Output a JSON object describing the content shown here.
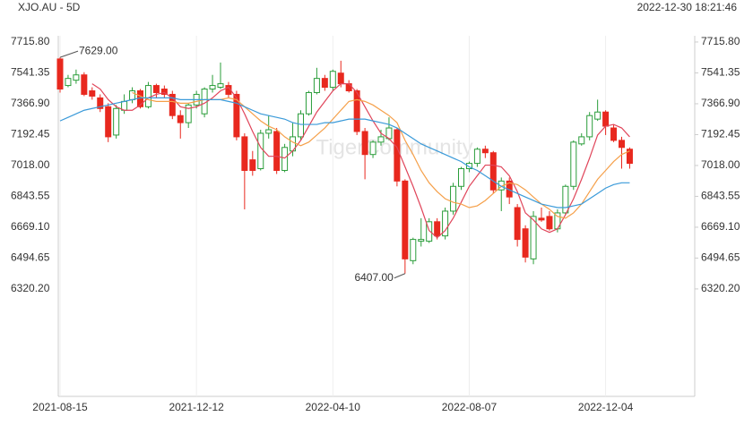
{
  "chart_data": {
    "type": "candlestick",
    "title": "XJO.AU - 5D",
    "timestamp": "2022-12-30 18:21:46",
    "watermark": "TigerCommunity",
    "categories": [
      "2021-08-15",
      null,
      null,
      null,
      null,
      null,
      null,
      null,
      null,
      null,
      null,
      null,
      null,
      null,
      null,
      null,
      null,
      "2021-12-12",
      null,
      null,
      null,
      null,
      null,
      null,
      null,
      null,
      null,
      null,
      null,
      null,
      null,
      null,
      null,
      null,
      "2022-04-10",
      null,
      null,
      null,
      null,
      null,
      null,
      null,
      null,
      null,
      null,
      null,
      null,
      null,
      null,
      null,
      null,
      "2022-08-07",
      null,
      null,
      null,
      null,
      null,
      null,
      null,
      null,
      null,
      null,
      null,
      null,
      null,
      null,
      null,
      null,
      "2022-12-04",
      null,
      null,
      null
    ],
    "open": [
      7620,
      7470,
      7500,
      7530,
      7440,
      7400,
      7350,
      7190,
      7330,
      7390,
      7440,
      7350,
      7470,
      7450,
      7420,
      7300,
      7260,
      7360,
      7310,
      7450,
      7460,
      7470,
      7420,
      7180,
      7050,
      7000,
      7200,
      7210,
      6990,
      7100,
      7180,
      7310,
      7430,
      7510,
      7460,
      7540,
      7480,
      7440,
      7210,
      7080,
      7150,
      7170,
      7220,
      6930,
      6480,
      6590,
      6590,
      6700,
      6620,
      6760,
      6900,
      7000,
      7030,
      7110,
      7090,
      6880,
      6930,
      6780,
      6660,
      6490,
      6720,
      6730,
      6660,
      6750,
      6900,
      7140,
      7180,
      7280,
      7320,
      7230,
      7160,
      7110
    ],
    "high": [
      7629,
      7530,
      7560,
      7545,
      7460,
      7420,
      7370,
      7360,
      7420,
      7460,
      7450,
      7490,
      7480,
      7470,
      7440,
      7330,
      7370,
      7440,
      7460,
      7530,
      7600,
      7490,
      7440,
      7200,
      7100,
      7220,
      7300,
      7230,
      7140,
      7260,
      7330,
      7440,
      7570,
      7530,
      7560,
      7610,
      7500,
      7450,
      7230,
      7160,
      7220,
      7290,
      7230,
      6940,
      6610,
      6720,
      6720,
      6720,
      6780,
      6920,
      7010,
      7040,
      7120,
      7130,
      7100,
      6950,
      6950,
      6800,
      6680,
      6760,
      6780,
      6760,
      6770,
      6910,
      7160,
      7200,
      7320,
      7390,
      7330,
      7250,
      7180,
      7120
    ],
    "low": [
      7430,
      7460,
      7480,
      7410,
      7390,
      7320,
      7150,
      7170,
      7310,
      7370,
      7340,
      7340,
      7400,
      7400,
      7280,
      7170,
      7230,
      7340,
      7290,
      7430,
      7450,
      7400,
      7160,
      6770,
      6960,
      6990,
      7170,
      6970,
      6980,
      7070,
      7160,
      7300,
      7420,
      7440,
      7440,
      7460,
      7430,
      7190,
      6940,
      7060,
      7130,
      7160,
      6900,
      6407,
      6460,
      6560,
      6580,
      6600,
      6600,
      6740,
      6880,
      6980,
      7010,
      7060,
      6860,
      6760,
      6800,
      6560,
      6470,
      6460,
      6700,
      6650,
      6640,
      6740,
      6880,
      7130,
      7160,
      7270,
      7190,
      7150,
      7000,
      7000
    ],
    "close": [
      7450,
      7510,
      7530,
      7420,
      7410,
      7340,
      7180,
      7340,
      7380,
      7440,
      7350,
      7470,
      7430,
      7420,
      7300,
      7260,
      7360,
      7420,
      7450,
      7470,
      7480,
      7420,
      7180,
      6990,
      6990,
      7200,
      7220,
      6990,
      7120,
      7180,
      7310,
      7430,
      7510,
      7460,
      7550,
      7480,
      7440,
      7210,
      7080,
      7150,
      7180,
      7230,
      6930,
      6490,
      6600,
      6600,
      6700,
      6620,
      6760,
      6900,
      7000,
      7030,
      7110,
      7090,
      6880,
      6930,
      6840,
      6600,
      6500,
      6730,
      6710,
      6660,
      6750,
      6900,
      7150,
      7180,
      7300,
      7320,
      7240,
      7160,
      7120,
      7030
    ],
    "up_color": "#2a9d3a",
    "down_color": "#e8281e",
    "series": [
      {
        "color": "#e0455a",
        "values": [
          null,
          null,
          null,
          null,
          7480,
          7450,
          7390,
          7350,
          7330,
          7330,
          7360,
          7400,
          7420,
          7430,
          7400,
          7350,
          7340,
          7350,
          7370,
          7400,
          7440,
          7460,
          7400,
          7310,
          7210,
          7120,
          7070,
          7070,
          7060,
          7100,
          7160,
          7240,
          7320,
          7380,
          7440,
          7480,
          7480,
          7430,
          7350,
          7270,
          7200,
          7170,
          7120,
          7010,
          6900,
          6780,
          6650,
          6610,
          6650,
          6720,
          6810,
          6900,
          6960,
          7020,
          7020,
          7010,
          6960,
          6870,
          6750,
          6710,
          6660,
          6640,
          6660,
          6740,
          6830,
          6940,
          7060,
          7190,
          7240,
          7250,
          7230,
          7180
        ]
      },
      {
        "color": "#f5a04a",
        "values": [
          null,
          null,
          null,
          null,
          null,
          null,
          null,
          null,
          null,
          7430,
          7410,
          7390,
          7380,
          7380,
          7380,
          7370,
          7370,
          7380,
          7390,
          7390,
          7390,
          7400,
          7390,
          7350,
          7310,
          7270,
          7240,
          7220,
          7180,
          7150,
          7130,
          7150,
          7190,
          7230,
          7280,
          7330,
          7380,
          7390,
          7380,
          7360,
          7330,
          7300,
          7260,
          7160,
          7080,
          6990,
          6920,
          6870,
          6830,
          6810,
          6800,
          6780,
          6790,
          6820,
          6860,
          6900,
          6920,
          6910,
          6880,
          6840,
          6800,
          6770,
          6730,
          6720,
          6750,
          6800,
          6870,
          6940,
          6990,
          7040,
          7080,
          7100
        ]
      },
      {
        "color": "#3a9ad9",
        "values": [
          7270,
          7290,
          7310,
          7330,
          7340,
          7350,
          7360,
          7370,
          7380,
          7390,
          7400,
          7400,
          7400,
          7400,
          7400,
          7390,
          7390,
          7390,
          7390,
          7390,
          7390,
          7380,
          7370,
          7350,
          7330,
          7310,
          7300,
          7290,
          7280,
          7260,
          7250,
          7250,
          7250,
          7260,
          7260,
          7270,
          7280,
          7280,
          7280,
          7270,
          7260,
          7250,
          7230,
          7200,
          7170,
          7140,
          7120,
          7100,
          7080,
          7060,
          7040,
          7010,
          6990,
          6960,
          6930,
          6900,
          6880,
          6860,
          6840,
          6820,
          6800,
          6790,
          6780,
          6780,
          6790,
          6800,
          6830,
          6860,
          6890,
          6910,
          6920,
          6920
        ]
      }
    ],
    "annotations": [
      {
        "value": 7629,
        "label": "7629.00"
      },
      {
        "value": 6407,
        "label": "6407.00"
      }
    ],
    "ylim": [
      5713,
      7751
    ],
    "yticks": [
      {
        "value": 7715.8,
        "label": "7715.80"
      },
      {
        "value": 7541.35,
        "label": "7541.35"
      },
      {
        "value": 7366.9,
        "label": "7366.90"
      },
      {
        "value": 7192.45,
        "label": "7192.45"
      },
      {
        "value": 7018,
        "label": "7018.00"
      },
      {
        "value": 6843.55,
        "label": "6843.55"
      },
      {
        "value": 6669.1,
        "label": "6669.10"
      },
      {
        "value": 6494.65,
        "label": "6494.65"
      },
      {
        "value": 6320.2,
        "label": "6320.20"
      }
    ]
  }
}
